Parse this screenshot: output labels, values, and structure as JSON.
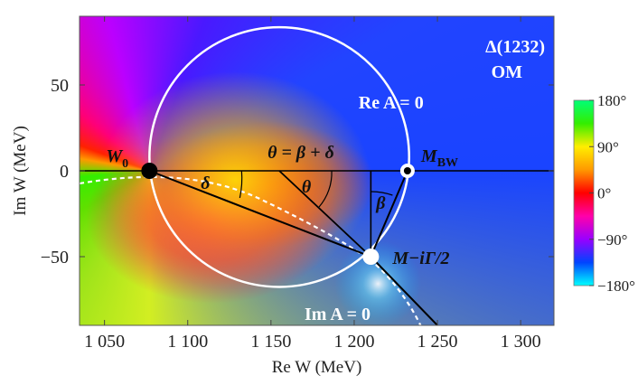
{
  "chart_data": {
    "type": "heatmap",
    "title": "Δ(1232)",
    "subtitle": "OM",
    "xlabel": "Re W (MeV)",
    "ylabel": "Im W (MeV)",
    "xlim": [
      1035,
      1320
    ],
    "ylim": [
      -90,
      90
    ],
    "x_ticks": [
      {
        "value": 1050,
        "label": "1 050"
      },
      {
        "value": 1100,
        "label": "1 100"
      },
      {
        "value": 1150,
        "label": "1 150"
      },
      {
        "value": 1200,
        "label": "1 200"
      },
      {
        "value": 1250,
        "label": "1 250"
      },
      {
        "value": 1300,
        "label": "1 300"
      }
    ],
    "y_ticks": [
      {
        "value": 50,
        "label": "50"
      },
      {
        "value": 0,
        "label": "0"
      },
      {
        "value": -50,
        "label": "−50"
      }
    ],
    "points": {
      "W0": {
        "x": 1077,
        "y": 0,
        "label": "W0"
      },
      "pole": {
        "x": 1210,
        "y": -50,
        "label": "M−iΓ/2"
      },
      "MBW": {
        "x": 1232,
        "y": 0,
        "label": "MBW"
      }
    },
    "circle": {
      "center_x": 1155,
      "center_y": 8,
      "radius": 78,
      "label": "Re A = 0"
    },
    "im_zero_label": "Im A = 0",
    "angles": {
      "theta_eq": "θ = β + δ",
      "theta": "θ",
      "beta": "β",
      "delta": "δ"
    },
    "colorbar": {
      "min": -180,
      "max": 180,
      "ticks": [
        {
          "value": 180,
          "label": "180°"
        },
        {
          "value": 90,
          "label": "90°"
        },
        {
          "value": 0,
          "label": "0°"
        },
        {
          "value": -90,
          "label": "−90°"
        },
        {
          "value": -180,
          "label": "−180°"
        }
      ],
      "colors": [
        "#00ffff",
        "#0044ff",
        "#9900ff",
        "#ff00aa",
        "#ff0000",
        "#ff9900",
        "#ffee00",
        "#33ee00",
        "#00ff77"
      ]
    }
  }
}
